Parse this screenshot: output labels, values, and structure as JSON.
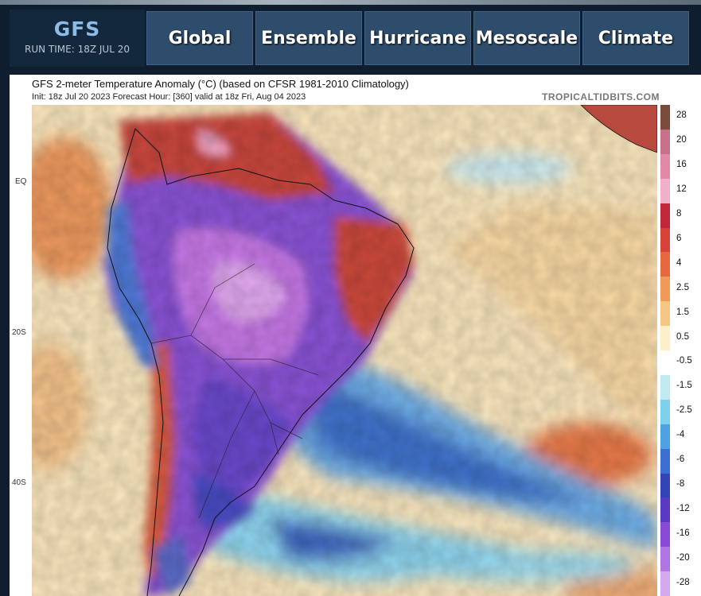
{
  "header": {
    "brand": "GFS",
    "run_time": "RUN TIME: 18Z JUL 20"
  },
  "nav": {
    "tabs": [
      {
        "label": "Global"
      },
      {
        "label": "Ensemble"
      },
      {
        "label": "Hurricane"
      },
      {
        "label": "Mesoscale"
      },
      {
        "label": "Climate"
      }
    ]
  },
  "map": {
    "title": "GFS 2-meter Temperature Anomaly (°C) (based on CFSR 1981-2010 Climatology)",
    "subtitle": "Init: 18z Jul 20 2023   Forecast Hour: [360]   valid at 18z Fri, Aug 04 2023",
    "credit": "TROPICALTIDBITS.COM",
    "lat_labels": [
      "EQ",
      "20S",
      "40S"
    ]
  },
  "legend": {
    "labels": [
      "28",
      "20",
      "16",
      "12",
      "8",
      "6",
      "4",
      "2.5",
      "1.5",
      "0.5",
      "-0.5",
      "-1.5",
      "-2.5",
      "-4",
      "-6",
      "-8",
      "-12",
      "-16",
      "-20",
      "-28"
    ],
    "colors": [
      "#7a4a3a",
      "#c7708a",
      "#e08aa8",
      "#efb0c8",
      "#c0283a",
      "#d8423a",
      "#e8683e",
      "#f09a58",
      "#f6c684",
      "#fdf0c8",
      "#ffffff",
      "#bfeaf0",
      "#7fd0ea",
      "#4fa2e2",
      "#3b6fd0",
      "#3344b4",
      "#5a3ac2",
      "#8a4ad6",
      "#b276e4",
      "#d6a8ee"
    ]
  }
}
